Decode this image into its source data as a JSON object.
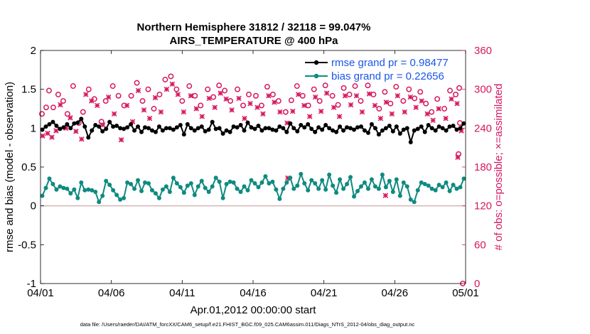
{
  "chart_data": {
    "type": "line",
    "title": "Northern Hemisphere 31812 / 32118 = 99.047%",
    "subtitle": "AIRS_TEMPERATURE @ 400 hPa",
    "xlabel": "Apr.01,2012 00:00:00 start",
    "ylabel_left": "rmse and bias (model - observation)",
    "ylabel_right": "# of obs: o=possible; ×=assimilated",
    "footnote": "data file: /Users/raeder/DAI/ATM_forcXX/CAM6_setup/f.e21.FHIST_BGC.f09_025.CAM6assim.011/Diags_NTrS_2012-04/obs_diag_output.nc",
    "x_ticks": [
      "04/01",
      "04/06",
      "04/11",
      "04/16",
      "04/21",
      "04/26",
      "05/01"
    ],
    "x_range_days": [
      0,
      30
    ],
    "ylim_left": [
      -1,
      2
    ],
    "yticks_left": [
      "-1",
      "-0.5",
      "0",
      "0.5",
      "1",
      "1.5",
      "2"
    ],
    "ylim_right": [
      0,
      360
    ],
    "yticks_right": [
      "0",
      "60",
      "120",
      "180",
      "240",
      "300",
      "360"
    ],
    "grid": false,
    "legend_position": "top-right",
    "colors": {
      "rmse": "#000000",
      "bias": "#0f8a80",
      "counts": "#d6175f",
      "zero_line": "#c8a0a0",
      "legend_text": "#1a56e8"
    },
    "series": [
      {
        "name": "rmse grand pr = 0.98477",
        "axis": "left",
        "x_day_step": 0.25,
        "values": [
          0.98,
          1.02,
          1.05,
          1.08,
          1.03,
          0.99,
          1.01,
          1.05,
          1.0,
          1.06,
          1.07,
          1.12,
          1.02,
          0.88,
          0.97,
          1.04,
          1.02,
          0.96,
          0.99,
          1.08,
          1.02,
          1.03,
          1.0,
          0.99,
          1.01,
          1.05,
          0.97,
          1.02,
          0.95,
          1.01,
          1.0,
          0.97,
          0.95,
          1.02,
          0.97,
          1.0,
          1.0,
          0.98,
          1.01,
          1.04,
          0.92,
          1.05,
          1.0,
          0.97,
          1.0,
          1.02,
          0.96,
          0.98,
          1.08,
          0.99,
          1.0,
          0.93,
          0.97,
          0.95,
          1.02,
          1.01,
          1.04,
          0.97,
          1.07,
          1.01,
          0.99,
          1.03,
          0.97,
          1.0,
          1.0,
          0.98,
          0.97,
          1.02,
          1.0,
          0.95,
          1.06,
          1.0,
          0.96,
          1.04,
          1.01,
          1.05,
          0.99,
          0.95,
          1.01,
          0.98,
          1.04,
          1.0,
          0.97,
          0.95,
          1.02,
          0.97,
          1.01,
          1.0,
          0.98,
          1.01,
          1.02,
          0.97,
          0.94,
          1.05,
          1.0,
          0.92,
          0.97,
          1.0,
          1.03,
          0.96,
          1.02,
          0.93,
          0.98,
          1.0,
          0.82,
          0.97,
          0.99,
          1.02,
          0.95,
          1.04,
          1.0,
          0.97,
          1.02,
          1.0,
          0.97,
          1.02,
          1.03,
          0.98,
          1.0,
          1.06
        ]
      },
      {
        "name": "bias grand pr = 0.22656",
        "axis": "left",
        "x_day_step": 0.25,
        "values": [
          0.13,
          0.23,
          0.35,
          0.28,
          0.21,
          0.25,
          0.23,
          0.22,
          0.16,
          0.21,
          0.1,
          0.3,
          0.2,
          0.21,
          0.2,
          0.18,
          0.05,
          0.13,
          0.32,
          0.27,
          0.2,
          0.14,
          0.08,
          0.1,
          0.3,
          0.28,
          0.22,
          0.33,
          0.19,
          0.3,
          0.29,
          0.2,
          0.16,
          0.1,
          0.21,
          0.25,
          0.18,
          0.36,
          0.29,
          0.24,
          0.17,
          0.26,
          0.29,
          0.14,
          0.25,
          0.32,
          0.23,
          0.18,
          0.25,
          0.36,
          0.31,
          0.1,
          0.28,
          0.31,
          0.3,
          0.22,
          0.18,
          0.25,
          0.2,
          0.33,
          0.29,
          0.24,
          0.3,
          0.38,
          0.29,
          0.31,
          0.21,
          0.09,
          0.22,
          0.3,
          0.36,
          0.22,
          0.26,
          0.41,
          0.29,
          0.2,
          0.33,
          0.29,
          0.22,
          0.33,
          0.21,
          0.4,
          0.26,
          0.17,
          0.34,
          0.22,
          0.28,
          0.37,
          0.12,
          0.19,
          0.25,
          0.3,
          0.22,
          0.34,
          0.25,
          0.22,
          0.4,
          0.24,
          0.32,
          0.18,
          0.34,
          0.13,
          0.3,
          0.25,
          0.08,
          0.05,
          0.2,
          0.3,
          0.28,
          0.26,
          0.22,
          0.2,
          0.27,
          0.24,
          0.3,
          0.19,
          0.27,
          0.22,
          0.24,
          0.35
        ]
      }
    ],
    "counts_possible": [
      [
        0.1,
        262
      ],
      [
        0.4,
        272
      ],
      [
        0.6,
        298
      ],
      [
        0.9,
        272
      ],
      [
        1.25,
        292
      ],
      [
        1.6,
        282
      ],
      [
        1.9,
        262
      ],
      [
        2.3,
        305
      ],
      [
        2.7,
        248
      ],
      [
        3.0,
        265
      ],
      [
        3.4,
        300
      ],
      [
        3.8,
        285
      ],
      [
        4.3,
        250
      ],
      [
        4.6,
        282
      ],
      [
        5.1,
        305
      ],
      [
        5.5,
        290
      ],
      [
        5.9,
        275
      ],
      [
        6.4,
        290
      ],
      [
        6.8,
        310
      ],
      [
        7.2,
        282
      ],
      [
        7.6,
        300
      ],
      [
        8.0,
        270
      ],
      [
        8.4,
        292
      ],
      [
        8.8,
        315
      ],
      [
        9.2,
        320
      ],
      [
        9.6,
        300
      ],
      [
        10.0,
        282
      ],
      [
        10.5,
        305
      ],
      [
        10.9,
        290
      ],
      [
        11.3,
        275
      ],
      [
        11.8,
        300
      ],
      [
        12.2,
        288
      ],
      [
        12.6,
        306
      ],
      [
        13.0,
        298
      ],
      [
        13.4,
        282
      ],
      [
        13.9,
        300
      ],
      [
        14.3,
        275
      ],
      [
        14.7,
        292
      ],
      [
        15.2,
        290
      ],
      [
        15.6,
        275
      ],
      [
        16.0,
        304
      ],
      [
        16.4,
        292
      ],
      [
        16.8,
        282
      ],
      [
        17.3,
        265
      ],
      [
        17.7,
        283
      ],
      [
        18.1,
        305
      ],
      [
        18.5,
        290
      ],
      [
        18.9,
        275
      ],
      [
        19.3,
        300
      ],
      [
        19.7,
        282
      ],
      [
        20.1,
        306
      ],
      [
        20.6,
        290
      ],
      [
        21.0,
        276
      ],
      [
        21.4,
        302
      ],
      [
        21.8,
        292
      ],
      [
        22.2,
        305
      ],
      [
        22.6,
        282
      ],
      [
        23.1,
        306
      ],
      [
        23.5,
        292
      ],
      [
        23.9,
        270
      ],
      [
        24.3,
        296
      ],
      [
        24.7,
        278
      ],
      [
        25.1,
        304
      ],
      [
        25.6,
        282
      ],
      [
        26.0,
        300
      ],
      [
        26.4,
        286
      ],
      [
        26.8,
        296
      ],
      [
        27.2,
        278
      ],
      [
        27.6,
        265
      ],
      [
        28.0,
        285
      ],
      [
        28.5,
        270
      ],
      [
        28.9,
        298
      ],
      [
        29.3,
        292
      ],
      [
        29.6,
        248
      ]
    ],
    "counts_assimilated": [
      [
        0.15,
        228
      ],
      [
        0.5,
        232
      ],
      [
        0.8,
        226
      ],
      [
        1.1,
        236
      ],
      [
        1.4,
        276
      ],
      [
        1.8,
        240
      ],
      [
        2.1,
        256
      ],
      [
        2.5,
        235
      ],
      [
        2.9,
        223
      ],
      [
        3.2,
        292
      ],
      [
        3.6,
        282
      ],
      [
        4.0,
        275
      ],
      [
        4.4,
        245
      ],
      [
        4.8,
        288
      ],
      [
        5.2,
        262
      ],
      [
        5.7,
        222
      ],
      [
        6.1,
        275
      ],
      [
        6.5,
        250
      ],
      [
        6.9,
        298
      ],
      [
        7.3,
        268
      ],
      [
        7.7,
        255
      ],
      [
        8.1,
        287
      ],
      [
        8.5,
        265
      ],
      [
        8.9,
        300
      ],
      [
        9.3,
        308
      ],
      [
        9.7,
        292
      ],
      [
        10.1,
        265
      ],
      [
        10.6,
        290
      ],
      [
        11.0,
        270
      ],
      [
        11.4,
        258
      ],
      [
        11.9,
        286
      ],
      [
        12.3,
        272
      ],
      [
        12.7,
        294
      ],
      [
        13.1,
        285
      ],
      [
        13.5,
        268
      ],
      [
        14.0,
        286
      ],
      [
        14.4,
        255
      ],
      [
        14.8,
        278
      ],
      [
        15.3,
        272
      ],
      [
        15.7,
        262
      ],
      [
        16.1,
        290
      ],
      [
        16.5,
        280
      ],
      [
        16.9,
        265
      ],
      [
        17.4,
        248
      ],
      [
        17.8,
        266
      ],
      [
        18.2,
        292
      ],
      [
        18.6,
        275
      ],
      [
        19.0,
        258
      ],
      [
        19.4,
        288
      ],
      [
        19.8,
        266
      ],
      [
        20.2,
        294
      ],
      [
        20.7,
        272
      ],
      [
        21.1,
        258
      ],
      [
        21.5,
        290
      ],
      [
        21.9,
        276
      ],
      [
        22.3,
        290
      ],
      [
        22.7,
        265
      ],
      [
        23.2,
        293
      ],
      [
        23.6,
        275
      ],
      [
        24.0,
        255
      ],
      [
        24.4,
        280
      ],
      [
        24.8,
        262
      ],
      [
        25.2,
        290
      ],
      [
        25.7,
        265
      ],
      [
        26.1,
        288
      ],
      [
        26.5,
        272
      ],
      [
        26.9,
        282
      ],
      [
        27.3,
        262
      ],
      [
        27.7,
        252
      ],
      [
        28.1,
        270
      ],
      [
        28.6,
        255
      ],
      [
        29.0,
        285
      ],
      [
        29.4,
        278
      ],
      [
        29.7,
        236
      ],
      [
        24.35,
        136
      ],
      [
        17.45,
        163
      ],
      [
        29.45,
        195
      ]
    ],
    "counts_possible_extra": [
      [
        29.5,
        200
      ],
      [
        29.55,
        302
      ],
      [
        29.8,
        0
      ]
    ]
  }
}
